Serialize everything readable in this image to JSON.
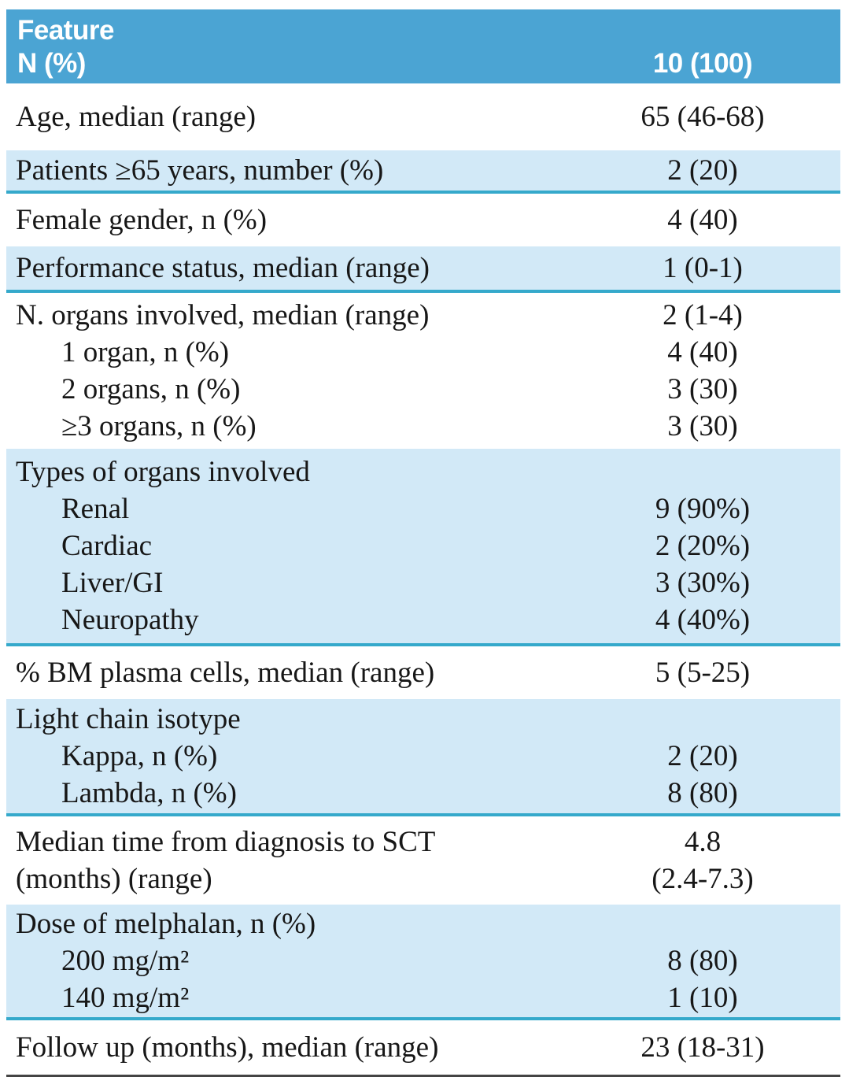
{
  "table": {
    "header": {
      "feature": "Feature",
      "n_pct": "N (%)",
      "total": "10 (100)"
    },
    "sections": [
      {
        "name": "age",
        "rows": [
          {
            "label": "Age, median (range)",
            "value": "65 (46-68)"
          }
        ]
      },
      {
        "name": "patients-over-65",
        "rows": [
          {
            "label": "Patients ≥65 years, number (%)",
            "value": "2 (20)"
          }
        ]
      },
      {
        "name": "female-gender",
        "rows": [
          {
            "label": "Female gender, n (%)",
            "value": "4 (40)"
          }
        ]
      },
      {
        "name": "performance-status",
        "rows": [
          {
            "label": "Performance status, median (range)",
            "value": "1 (0-1)"
          }
        ]
      },
      {
        "name": "organs-involved",
        "rows": [
          {
            "label": "N. organs involved, median (range)",
            "value": "2 (1-4)"
          },
          {
            "label": "1 organ, n (%)",
            "value": "4 (40)"
          },
          {
            "label": "2 organs, n (%)",
            "value": "3 (30)"
          },
          {
            "label": "≥3 organs, n (%)",
            "value": "3 (30)"
          }
        ]
      },
      {
        "name": "organ-types",
        "rows": [
          {
            "label": "Types of organs involved",
            "value": ""
          },
          {
            "label": "Renal",
            "value": "9 (90%)"
          },
          {
            "label": "Cardiac",
            "value": "2 (20%)"
          },
          {
            "label": "Liver/GI",
            "value": "3 (30%)"
          },
          {
            "label": "Neuropathy",
            "value": "4 (40%)"
          }
        ]
      },
      {
        "name": "bm-plasma-cells",
        "rows": [
          {
            "label": "% BM plasma cells, median (range)",
            "value": "5 (5-25)"
          }
        ]
      },
      {
        "name": "light-chain-isotype",
        "rows": [
          {
            "label": "Light chain isotype",
            "value": ""
          },
          {
            "label": "Kappa, n (%)",
            "value": "2 (20)"
          },
          {
            "label": "Lambda, n (%)",
            "value": "8 (80)"
          }
        ]
      },
      {
        "name": "time-to-sct",
        "rows": [
          {
            "label": "Median time from diagnosis to SCT",
            "value": "4.8"
          },
          {
            "label": "(months) (range)",
            "value": "(2.4-7.3)"
          }
        ]
      },
      {
        "name": "melphalan-dose",
        "rows": [
          {
            "label": "Dose of melphalan, n (%)",
            "value": ""
          },
          {
            "label": "200 mg/m²",
            "value": "8 (80)"
          },
          {
            "label": "140 mg/m²",
            "value": "1 (10)"
          }
        ]
      },
      {
        "name": "follow-up",
        "rows": [
          {
            "label": "Follow up (months), median (range)",
            "value": "23 (18-31)"
          }
        ]
      }
    ]
  },
  "colors": {
    "header_bg": "#4ba4d3",
    "header_text": "#ffffff",
    "row_shaded_bg": "#d2e9f7",
    "section_rule": "#35a9cb",
    "table_bottom_rule": "#444444",
    "body_text": "#171717"
  },
  "chart_data": {
    "type": "table",
    "columns": [
      "Feature",
      "N (%) 10 (100)"
    ],
    "rows": [
      [
        "Age, median (range)",
        "65 (46-68)"
      ],
      [
        "Patients ≥65 years, number (%)",
        "2 (20)"
      ],
      [
        "Female gender, n (%)",
        "4 (40)"
      ],
      [
        "Performance status, median (range)",
        "1 (0-1)"
      ],
      [
        "N. organs involved, median (range)",
        "2 (1-4)"
      ],
      [
        "1 organ, n (%)",
        "4 (40)"
      ],
      [
        "2 organs, n (%)",
        "3 (30)"
      ],
      [
        "≥3 organs, n (%)",
        "3 (30)"
      ],
      [
        "Types of organs involved",
        ""
      ],
      [
        "Renal",
        "9 (90%)"
      ],
      [
        "Cardiac",
        "2 (20%)"
      ],
      [
        "Liver/GI",
        "3 (30%)"
      ],
      [
        "Neuropathy",
        "4 (40%)"
      ],
      [
        "% BM plasma cells, median (range)",
        "5 (5-25)"
      ],
      [
        "Light chain isotype",
        ""
      ],
      [
        "Kappa, n (%)",
        "2 (20)"
      ],
      [
        "Lambda, n (%)",
        "8 (80)"
      ],
      [
        "Median time from diagnosis to SCT (months) (range)",
        "4.8 (2.4-7.3)"
      ],
      [
        "Dose of melphalan, n (%)",
        ""
      ],
      [
        "200 mg/m²",
        "8 (80)"
      ],
      [
        "140 mg/m²",
        "1 (10)"
      ],
      [
        "Follow up (months), median (range)",
        "23 (18-31)"
      ]
    ]
  }
}
